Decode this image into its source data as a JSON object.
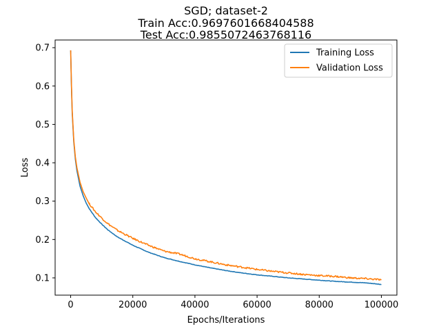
{
  "chart_data": {
    "type": "line",
    "title_lines": [
      "SGD; dataset-2",
      "Train Acc:0.9697601668404588",
      "Test Acc:0.9855072463768116"
    ],
    "xlabel": "Epochs/Iterations",
    "ylabel": "Loss",
    "xlim": [
      -5000,
      105000
    ],
    "ylim": [
      0.055,
      0.72
    ],
    "xticks": [
      0,
      20000,
      40000,
      60000,
      80000,
      100000
    ],
    "xtick_labels": [
      "0",
      "20000",
      "40000",
      "60000",
      "80000",
      "100000"
    ],
    "yticks": [
      0.1,
      0.2,
      0.3,
      0.4,
      0.5,
      0.6,
      0.7
    ],
    "ytick_labels": [
      "0.1",
      "0.2",
      "0.3",
      "0.4",
      "0.5",
      "0.6",
      "0.7"
    ],
    "legend_position": "top-right",
    "grid": false,
    "series": [
      {
        "name": "Training Loss",
        "color": "#1f77b4",
        "x": [
          0,
          250,
          500,
          1000,
          1500,
          2000,
          3000,
          4000,
          5000,
          6000,
          8000,
          10000,
          12000,
          15000,
          20000,
          25000,
          30000,
          35000,
          40000,
          45000,
          50000,
          55000,
          60000,
          65000,
          70000,
          75000,
          80000,
          85000,
          90000,
          95000,
          100000
        ],
        "y": [
          0.693,
          0.6,
          0.53,
          0.455,
          0.41,
          0.38,
          0.34,
          0.315,
          0.295,
          0.28,
          0.257,
          0.24,
          0.225,
          0.207,
          0.185,
          0.167,
          0.153,
          0.143,
          0.134,
          0.126,
          0.119,
          0.113,
          0.108,
          0.104,
          0.1,
          0.097,
          0.094,
          0.091,
          0.089,
          0.087,
          0.083
        ]
      },
      {
        "name": "Validation Loss",
        "color": "#ff7f0e",
        "x": [
          0,
          250,
          500,
          1000,
          1500,
          2000,
          3000,
          4000,
          5000,
          6000,
          8000,
          10000,
          12000,
          15000,
          20000,
          25000,
          30000,
          35000,
          40000,
          45000,
          50000,
          55000,
          60000,
          65000,
          70000,
          75000,
          80000,
          85000,
          90000,
          95000,
          100000
        ],
        "y": [
          0.693,
          0.605,
          0.535,
          0.46,
          0.418,
          0.388,
          0.35,
          0.327,
          0.307,
          0.293,
          0.272,
          0.256,
          0.241,
          0.224,
          0.203,
          0.185,
          0.17,
          0.162,
          0.15,
          0.142,
          0.134,
          0.128,
          0.122,
          0.117,
          0.113,
          0.109,
          0.106,
          0.104,
          0.1,
          0.098,
          0.095
        ]
      }
    ]
  }
}
